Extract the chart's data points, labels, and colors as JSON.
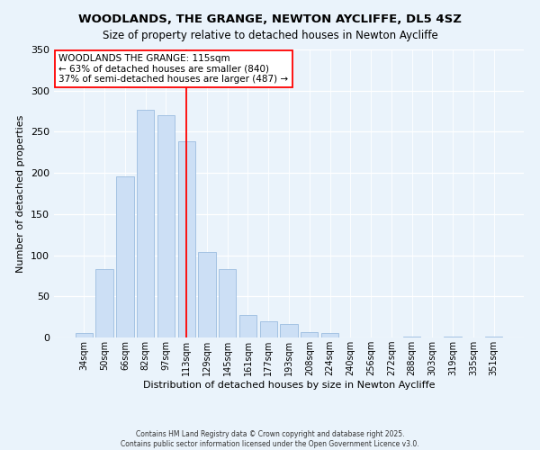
{
  "title": "WOODLANDS, THE GRANGE, NEWTON AYCLIFFE, DL5 4SZ",
  "subtitle": "Size of property relative to detached houses in Newton Aycliffe",
  "xlabel": "Distribution of detached houses by size in Newton Aycliffe",
  "ylabel": "Number of detached properties",
  "bar_labels": [
    "34sqm",
    "50sqm",
    "66sqm",
    "82sqm",
    "97sqm",
    "113sqm",
    "129sqm",
    "145sqm",
    "161sqm",
    "177sqm",
    "193sqm",
    "208sqm",
    "224sqm",
    "240sqm",
    "256sqm",
    "272sqm",
    "288sqm",
    "303sqm",
    "319sqm",
    "335sqm",
    "351sqm"
  ],
  "bar_values": [
    5,
    83,
    196,
    277,
    270,
    238,
    104,
    83,
    27,
    20,
    16,
    7,
    5,
    0,
    0,
    0,
    1,
    0,
    1,
    0,
    1
  ],
  "bar_color": "#ccdff5",
  "bar_edge_color": "#9bbce0",
  "vline_color": "red",
  "vline_label_idx": 5,
  "ylim": [
    0,
    350
  ],
  "yticks": [
    0,
    50,
    100,
    150,
    200,
    250,
    300,
    350
  ],
  "annotation_title": "WOODLANDS THE GRANGE: 115sqm",
  "annotation_line1": "← 63% of detached houses are smaller (840)",
  "annotation_line2": "37% of semi-detached houses are larger (487) →",
  "footer_line1": "Contains HM Land Registry data © Crown copyright and database right 2025.",
  "footer_line2": "Contains public sector information licensed under the Open Government Licence v3.0.",
  "background_color": "#eaf3fb",
  "annotation_box_color": "white",
  "annotation_box_edge": "red"
}
